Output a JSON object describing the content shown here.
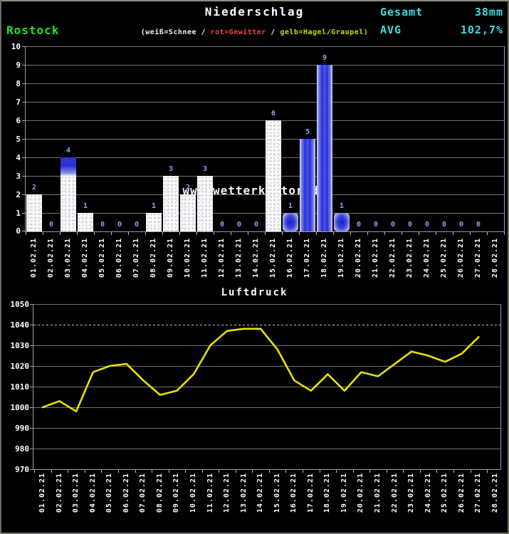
{
  "header": {
    "title": "Niederschlag",
    "station": "Rostock",
    "total_label": "Gesamt",
    "total_value": "38mm",
    "avg_label": "AVG",
    "avg_value": "102,7%",
    "legend": {
      "snow": "(weiß=Schnee",
      "sep1": " / ",
      "thunder": "rot=Gewitter",
      "sep2": " / ",
      "hail": "gelb=Hagel/Graupel)"
    }
  },
  "watermark": "www.wetterkontor.de",
  "colors": {
    "background": "#000000",
    "title_white": "#ffffff",
    "station_green": "#21e421",
    "cyan": "#3fdede",
    "legend_red": "#ff4242",
    "legend_yellow": "#d8d800",
    "bar_value_blue": "#8ea6f4",
    "snow_bar_white": "#fbfbfb",
    "rain_bar_blue": "#2a30cf",
    "pressure_line_yellow": "#eae200",
    "gridline_gray": "#737373"
  },
  "chart_data": [
    {
      "type": "bar",
      "title": "Niederschlag",
      "ylabel": "",
      "ylim": [
        0,
        10
      ],
      "yticks": [
        "0",
        "1",
        "2",
        "3",
        "4",
        "5",
        "6",
        "7",
        "8",
        "9",
        "10"
      ],
      "grid": true,
      "categories": [
        "01.02.21",
        "02.02.21",
        "03.02.21",
        "04.02.21",
        "05.02.21",
        "06.02.21",
        "07.02.21",
        "08.02.21",
        "09.02.21",
        "10.02.21",
        "11.02.21",
        "12.02.21",
        "13.02.21",
        "14.02.21",
        "15.02.21",
        "16.02.21",
        "17.02.21",
        "18.02.21",
        "19.02.21",
        "20.02.21",
        "21.02.21",
        "22.02.21",
        "23.02.21",
        "24.02.21",
        "25.02.21",
        "26.02.21",
        "27.02.21",
        "28.02.21"
      ],
      "bars": [
        {
          "date": "01.02.21",
          "value": 2,
          "kind": "snow"
        },
        {
          "date": "02.02.21",
          "value": 0,
          "kind": "none"
        },
        {
          "date": "03.02.21",
          "value": 4,
          "kind": "mixed",
          "rain_above": 3
        },
        {
          "date": "04.02.21",
          "value": 1,
          "kind": "snow"
        },
        {
          "date": "05.02.21",
          "value": 0,
          "kind": "none"
        },
        {
          "date": "06.02.21",
          "value": 0,
          "kind": "none"
        },
        {
          "date": "07.02.21",
          "value": 0,
          "kind": "none"
        },
        {
          "date": "08.02.21",
          "value": 1,
          "kind": "snow"
        },
        {
          "date": "09.02.21",
          "value": 3,
          "kind": "snow"
        },
        {
          "date": "10.02.21",
          "value": 2,
          "kind": "snow"
        },
        {
          "date": "11.02.21",
          "value": 3,
          "kind": "snow"
        },
        {
          "date": "12.02.21",
          "value": 0,
          "kind": "none"
        },
        {
          "date": "13.02.21",
          "value": 0,
          "kind": "none"
        },
        {
          "date": "14.02.21",
          "value": 0,
          "kind": "none"
        },
        {
          "date": "15.02.21",
          "value": 6,
          "kind": "snow"
        },
        {
          "date": "16.02.21",
          "value": 1,
          "kind": "rain"
        },
        {
          "date": "17.02.21",
          "value": 5,
          "kind": "rain"
        },
        {
          "date": "18.02.21",
          "value": 9,
          "kind": "rain"
        },
        {
          "date": "19.02.21",
          "value": 1,
          "kind": "rain"
        },
        {
          "date": "20.02.21",
          "value": 0,
          "kind": "none"
        },
        {
          "date": "21.02.21",
          "value": 0,
          "kind": "none"
        },
        {
          "date": "22.02.21",
          "value": 0,
          "kind": "none"
        },
        {
          "date": "23.02.21",
          "value": 0,
          "kind": "none"
        },
        {
          "date": "24.02.21",
          "value": 0,
          "kind": "none"
        },
        {
          "date": "25.02.21",
          "value": 0,
          "kind": "none"
        },
        {
          "date": "26.02.21",
          "value": 0,
          "kind": "none"
        },
        {
          "date": "27.02.21",
          "value": 0,
          "kind": "none"
        },
        {
          "date": "28.02.21",
          "value": null,
          "kind": "none"
        }
      ]
    },
    {
      "type": "line",
      "title": "Luftdruck",
      "ylim": [
        970,
        1050
      ],
      "yticks": [
        "970",
        "980",
        "990",
        "1000",
        "1010",
        "1020",
        "1030",
        "1040",
        "1050"
      ],
      "dotted_gridline_at": 1040,
      "grid": true,
      "legend_position": "none",
      "categories": [
        "01.02.21",
        "02.02.21",
        "03.02.21",
        "04.02.21",
        "05.02.21",
        "06.02.21",
        "07.02.21",
        "08.02.21",
        "09.02.21",
        "10.02.21",
        "11.02.21",
        "12.02.21",
        "13.02.21",
        "14.02.21",
        "15.02.21",
        "16.02.21",
        "17.02.21",
        "18.02.21",
        "19.02.21",
        "20.02.21",
        "21.02.21",
        "22.02.21",
        "23.02.21",
        "24.02.21",
        "25.02.21",
        "26.02.21",
        "27.02.21",
        "28.02.21"
      ],
      "values": [
        1000,
        1003,
        998,
        1017,
        1020,
        1021,
        1013,
        1006,
        1008,
        1016,
        1030,
        1037,
        1038,
        1038,
        1028,
        1013,
        1008,
        1016,
        1008,
        1017,
        1015,
        1021,
        1027,
        1025,
        1022,
        1026,
        1034
      ]
    }
  ]
}
